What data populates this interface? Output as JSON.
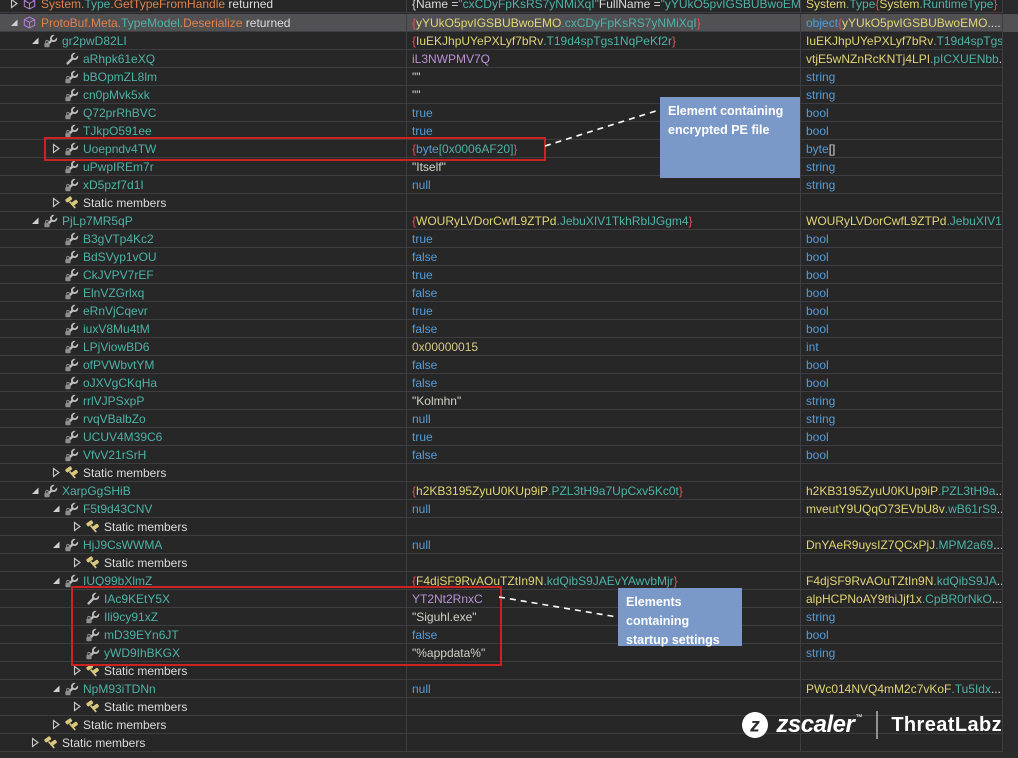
{
  "theme": {
    "bg": "#272728",
    "bg_bottom": "#2b2b2b",
    "bg_strip": "#2a2a2c",
    "row_border": "#3e3e42",
    "selection": "#515154",
    "red_box": "#cc2222",
    "annotation_bg": "#7b99c8",
    "annotation_text": "#ffffff",
    "dashed_line": "#ffffff",
    "tok_white": "#dcdcdc",
    "tok_teal": "#4db3a6",
    "tok_blue": "#569cd6",
    "tok_yellow": "#e2d574",
    "tok_purple": "#bb92d8",
    "tok_red": "#e05252",
    "tok_orange": "#e0824a",
    "tok_khaki": "#d7c987",
    "tok_string": "#d2d2c8"
  },
  "annotations": [
    {
      "id": "encrypted-pe",
      "line1": "Element containing",
      "line2": "encrypted PE file"
    },
    {
      "id": "startup-settings",
      "line1": "Elements containing",
      "line2": "startup settings"
    }
  ],
  "logo": {
    "brand": "zscaler",
    "trademark": "™",
    "product": "ThreatLabz"
  },
  "rows": [
    {
      "lvl": 0,
      "exp": "c",
      "icon": "cube",
      "clip": true,
      "n": [
        [
          "System.",
          "o"
        ],
        [
          "Type",
          "t"
        ],
        [
          ".GetTypeFromHandle",
          "o"
        ],
        [
          " returned",
          "w"
        ]
      ],
      "v": [
        [
          "{Name = ",
          "w"
        ],
        [
          "\"cxCDyFpKsRS7yNMiXqI\"",
          "t"
        ],
        [
          " FullName = ",
          "w"
        ],
        [
          "\"yYUkO5pvIGSBUBwoEM",
          "t"
        ]
      ],
      "t": [
        [
          "System",
          "y"
        ],
        [
          ".Type",
          "t"
        ],
        [
          " {",
          "r"
        ],
        [
          "System",
          "y"
        ],
        [
          ".RuntimeType",
          "t"
        ],
        [
          "}",
          "r"
        ]
      ]
    },
    {
      "lvl": 0,
      "exp": "e",
      "icon": "cube",
      "sel": true,
      "n": [
        [
          "ProtoBuf.Meta.",
          "o"
        ],
        [
          "TypeModel",
          "t"
        ],
        [
          ".Deserialize",
          "o"
        ],
        [
          " returned",
          "w"
        ]
      ],
      "v": [
        [
          "{",
          "r"
        ],
        [
          "yYUkO5pvIGSBUBwoEMO",
          "y"
        ],
        [
          ".cxCDyFpKsRS7yNMiXqI",
          "t"
        ],
        [
          "}",
          "r"
        ]
      ],
      "t": [
        [
          "object ",
          "b"
        ],
        [
          "{",
          "r"
        ],
        [
          "yYUkO5pvIGSBUBwoEMO",
          "y"
        ],
        [
          "....",
          "w"
        ]
      ]
    },
    {
      "lvl": 1,
      "exp": "e",
      "icon": "propsub",
      "n": [
        [
          "gr2pwD82LI",
          "t"
        ]
      ],
      "v": [
        [
          "{",
          "r"
        ],
        [
          "IuEKJhpUYePXLyf7bRv",
          "y"
        ],
        [
          ".T19d4spTgs1NqPeKf2r",
          "t"
        ],
        [
          "}",
          "r"
        ]
      ],
      "t": [
        [
          "IuEKJhpUYePXLyf7bRv",
          "y"
        ],
        [
          ".T19d4spTgs",
          "t"
        ],
        [
          "...",
          "w"
        ]
      ]
    },
    {
      "lvl": 2,
      "exp": null,
      "icon": "prop",
      "n": [
        [
          "aRhpk61eXQ",
          "t"
        ]
      ],
      "v": [
        [
          "iL3NWPMV7Q",
          "p"
        ]
      ],
      "t": [
        [
          "vtjE5wNZnRcKNTj4LPI",
          "y"
        ],
        [
          ".pICXUENbb",
          "t"
        ],
        [
          "...",
          "w"
        ]
      ]
    },
    {
      "lvl": 2,
      "exp": null,
      "icon": "propsub",
      "n": [
        [
          "bBOpmZL8lm",
          "t"
        ]
      ],
      "v": [
        [
          "\"\"",
          "s"
        ]
      ],
      "t": [
        [
          "string",
          "b"
        ]
      ]
    },
    {
      "lvl": 2,
      "exp": null,
      "icon": "propsub",
      "n": [
        [
          "cn0pMvk5xk",
          "t"
        ]
      ],
      "v": [
        [
          "\"\"",
          "s"
        ]
      ],
      "t": [
        [
          "string",
          "b"
        ]
      ]
    },
    {
      "lvl": 2,
      "exp": null,
      "icon": "propsub",
      "n": [
        [
          "Q72prRhBVC",
          "t"
        ]
      ],
      "v": [
        [
          "true",
          "b"
        ]
      ],
      "t": [
        [
          "bool",
          "b"
        ]
      ]
    },
    {
      "lvl": 2,
      "exp": null,
      "icon": "propsub",
      "n": [
        [
          "TJkpO591ee",
          "t"
        ]
      ],
      "v": [
        [
          "true",
          "b"
        ]
      ],
      "t": [
        [
          "bool",
          "b"
        ]
      ]
    },
    {
      "lvl": 2,
      "exp": "c",
      "icon": "propsub",
      "n": [
        [
          "Uoepndv4TW",
          "t"
        ]
      ],
      "v": [
        [
          "{",
          "r"
        ],
        [
          "byte",
          "b"
        ],
        [
          "[0x0006AF20]",
          "t"
        ],
        [
          "}",
          "r"
        ]
      ],
      "t": [
        [
          "byte",
          "b"
        ],
        [
          "[]",
          "w"
        ]
      ]
    },
    {
      "lvl": 2,
      "exp": null,
      "icon": "propsub",
      "n": [
        [
          "uPwpIREm7r",
          "t"
        ]
      ],
      "v": [
        [
          "\"Itself\"",
          "s"
        ]
      ],
      "t": [
        [
          "string",
          "b"
        ]
      ]
    },
    {
      "lvl": 2,
      "exp": null,
      "icon": "propsub",
      "n": [
        [
          "xD5pzf7d1I",
          "t"
        ]
      ],
      "v": [
        [
          "null",
          "b"
        ]
      ],
      "t": [
        [
          "string",
          "b"
        ]
      ]
    },
    {
      "lvl": 2,
      "exp": "c",
      "icon": "static",
      "n": [
        [
          "Static members",
          "w"
        ]
      ],
      "v": [],
      "t": []
    },
    {
      "lvl": 1,
      "exp": "e",
      "icon": "propsub",
      "n": [
        [
          "PjLp7MR5qP",
          "t"
        ]
      ],
      "v": [
        [
          "{",
          "r"
        ],
        [
          "WOURyLVDorCwfL9ZTPd",
          "y"
        ],
        [
          ".JebuXIV1TkhRblJGgm4",
          "t"
        ],
        [
          "}",
          "r"
        ]
      ],
      "t": [
        [
          "WOURyLVDorCwfL9ZTPd",
          "y"
        ],
        [
          ".JebuXIV1",
          "t"
        ],
        [
          "...",
          "w"
        ]
      ]
    },
    {
      "lvl": 2,
      "exp": null,
      "icon": "propsub",
      "n": [
        [
          "B3gVTp4Kc2",
          "t"
        ]
      ],
      "v": [
        [
          "true",
          "b"
        ]
      ],
      "t": [
        [
          "bool",
          "b"
        ]
      ]
    },
    {
      "lvl": 2,
      "exp": null,
      "icon": "propsub",
      "n": [
        [
          "BdSVyp1vOU",
          "t"
        ]
      ],
      "v": [
        [
          "false",
          "b"
        ]
      ],
      "t": [
        [
          "bool",
          "b"
        ]
      ]
    },
    {
      "lvl": 2,
      "exp": null,
      "icon": "propsub",
      "n": [
        [
          "CkJVPV7rEF",
          "t"
        ]
      ],
      "v": [
        [
          "true",
          "b"
        ]
      ],
      "t": [
        [
          "bool",
          "b"
        ]
      ]
    },
    {
      "lvl": 2,
      "exp": null,
      "icon": "propsub",
      "n": [
        [
          "ElnVZGrlxq",
          "t"
        ]
      ],
      "v": [
        [
          "false",
          "b"
        ]
      ],
      "t": [
        [
          "bool",
          "b"
        ]
      ]
    },
    {
      "lvl": 2,
      "exp": null,
      "icon": "propsub",
      "n": [
        [
          "eRnVjCqevr",
          "t"
        ]
      ],
      "v": [
        [
          "true",
          "b"
        ]
      ],
      "t": [
        [
          "bool",
          "b"
        ]
      ]
    },
    {
      "lvl": 2,
      "exp": null,
      "icon": "propsub",
      "n": [
        [
          "iuxV8Mu4tM",
          "t"
        ]
      ],
      "v": [
        [
          "false",
          "b"
        ]
      ],
      "t": [
        [
          "bool",
          "b"
        ]
      ]
    },
    {
      "lvl": 2,
      "exp": null,
      "icon": "propsub",
      "n": [
        [
          "LPjViowBD6",
          "t"
        ]
      ],
      "v": [
        [
          "0x00000015",
          "k"
        ]
      ],
      "t": [
        [
          "int",
          "b"
        ]
      ]
    },
    {
      "lvl": 2,
      "exp": null,
      "icon": "propsub",
      "n": [
        [
          "ofPVWbvtYM",
          "t"
        ]
      ],
      "v": [
        [
          "false",
          "b"
        ]
      ],
      "t": [
        [
          "bool",
          "b"
        ]
      ]
    },
    {
      "lvl": 2,
      "exp": null,
      "icon": "propsub",
      "n": [
        [
          "oJXVgCKqHa",
          "t"
        ]
      ],
      "v": [
        [
          "false",
          "b"
        ]
      ],
      "t": [
        [
          "bool",
          "b"
        ]
      ]
    },
    {
      "lvl": 2,
      "exp": null,
      "icon": "propsub",
      "n": [
        [
          "rrlVJPSxpP",
          "t"
        ]
      ],
      "v": [
        [
          "\"Kolmhn\"",
          "s"
        ]
      ],
      "t": [
        [
          "string",
          "b"
        ]
      ]
    },
    {
      "lvl": 2,
      "exp": null,
      "icon": "propsub",
      "n": [
        [
          "rvqVBalbZo",
          "t"
        ]
      ],
      "v": [
        [
          "null",
          "b"
        ]
      ],
      "t": [
        [
          "string",
          "b"
        ]
      ]
    },
    {
      "lvl": 2,
      "exp": null,
      "icon": "propsub",
      "n": [
        [
          "UCUV4M39C6",
          "t"
        ]
      ],
      "v": [
        [
          "true",
          "b"
        ]
      ],
      "t": [
        [
          "bool",
          "b"
        ]
      ]
    },
    {
      "lvl": 2,
      "exp": null,
      "icon": "propsub",
      "n": [
        [
          "VfvV21rSrH",
          "t"
        ]
      ],
      "v": [
        [
          "false",
          "b"
        ]
      ],
      "t": [
        [
          "bool",
          "b"
        ]
      ]
    },
    {
      "lvl": 2,
      "exp": "c",
      "icon": "static",
      "n": [
        [
          "Static members",
          "w"
        ]
      ],
      "v": [],
      "t": []
    },
    {
      "lvl": 1,
      "exp": "e",
      "icon": "propsub",
      "n": [
        [
          "XarpGgSHiB",
          "t"
        ]
      ],
      "v": [
        [
          "{",
          "r"
        ],
        [
          "h2KB3195ZyuU0KUp9iP",
          "y"
        ],
        [
          ".PZL3tH9a7UpCxv5Kc0t",
          "t"
        ],
        [
          "}",
          "r"
        ]
      ],
      "t": [
        [
          "h2KB3195ZyuU0KUp9iP",
          "y"
        ],
        [
          ".PZL3tH9a",
          "t"
        ],
        [
          "...",
          "w"
        ]
      ]
    },
    {
      "lvl": 2,
      "exp": "e",
      "icon": "propsub",
      "n": [
        [
          "F5t9d43CNV",
          "t"
        ]
      ],
      "v": [
        [
          "null",
          "b"
        ]
      ],
      "t": [
        [
          "mveutY9UQqO73EVbU8v",
          "y"
        ],
        [
          ".wB61rS9",
          "t"
        ],
        [
          "...",
          "w"
        ]
      ]
    },
    {
      "lvl": 3,
      "exp": "c",
      "icon": "static",
      "n": [
        [
          "Static members",
          "w"
        ]
      ],
      "v": [],
      "t": []
    },
    {
      "lvl": 2,
      "exp": "e",
      "icon": "propsub",
      "n": [
        [
          "HjJ9CsWWMA",
          "t"
        ]
      ],
      "v": [
        [
          "null",
          "b"
        ]
      ],
      "t": [
        [
          "DnYAeR9uysIZ7QCxPjJ",
          "y"
        ],
        [
          ".MPM2a69",
          "t"
        ],
        [
          "...",
          "w"
        ]
      ]
    },
    {
      "lvl": 3,
      "exp": "c",
      "icon": "static",
      "n": [
        [
          "Static members",
          "w"
        ]
      ],
      "v": [],
      "t": []
    },
    {
      "lvl": 2,
      "exp": "e",
      "icon": "propsub",
      "n": [
        [
          "IUQ99bXlmZ",
          "t"
        ]
      ],
      "v": [
        [
          "{",
          "r"
        ],
        [
          "F4djSF9RvAOuTZtIn9N",
          "y"
        ],
        [
          ".kdQibS9JAEvYAwvbMjr",
          "t"
        ],
        [
          "}",
          "r"
        ]
      ],
      "t": [
        [
          "F4djSF9RvAOuTZtIn9N",
          "y"
        ],
        [
          ".kdQibS9JA",
          "t"
        ],
        [
          "...",
          "w"
        ]
      ]
    },
    {
      "lvl": 3,
      "exp": null,
      "icon": "prop",
      "n": [
        [
          "IAc9KEtY5X",
          "t"
        ]
      ],
      "v": [
        [
          "YT2Nt2RnxC",
          "p"
        ]
      ],
      "t": [
        [
          "alpHCPNoAY9thiJjf1x",
          "y"
        ],
        [
          ".CpBR0rNkO",
          "t"
        ],
        [
          "...",
          "w"
        ]
      ]
    },
    {
      "lvl": 3,
      "exp": null,
      "icon": "propsub",
      "n": [
        [
          "Ili9cy91xZ",
          "t"
        ]
      ],
      "v": [
        [
          "\"Siguhl.exe\"",
          "s"
        ]
      ],
      "t": [
        [
          "string",
          "b"
        ]
      ]
    },
    {
      "lvl": 3,
      "exp": null,
      "icon": "propsub",
      "n": [
        [
          "mD39EYn6JT",
          "t"
        ]
      ],
      "v": [
        [
          "false",
          "b"
        ]
      ],
      "t": [
        [
          "bool",
          "b"
        ]
      ]
    },
    {
      "lvl": 3,
      "exp": null,
      "icon": "propsub",
      "n": [
        [
          "yWD9IhBKGX",
          "t"
        ]
      ],
      "v": [
        [
          "\"%appdata%\"",
          "s"
        ]
      ],
      "t": [
        [
          "string",
          "b"
        ]
      ]
    },
    {
      "lvl": 3,
      "exp": "c",
      "icon": "static",
      "n": [
        [
          "Static members",
          "w"
        ]
      ],
      "v": [],
      "t": []
    },
    {
      "lvl": 2,
      "exp": "e",
      "icon": "propsub",
      "n": [
        [
          "NpM93iTDNn",
          "t"
        ]
      ],
      "v": [
        [
          "null",
          "b"
        ]
      ],
      "t": [
        [
          "PWc014NVQ4mM2c7vKoF",
          "y"
        ],
        [
          ".Tu5Idx",
          "t"
        ],
        [
          "...",
          "w"
        ]
      ]
    },
    {
      "lvl": 3,
      "exp": "c",
      "icon": "static",
      "n": [
        [
          "Static members",
          "w"
        ]
      ],
      "v": [],
      "t": []
    },
    {
      "lvl": 2,
      "exp": "c",
      "icon": "static",
      "n": [
        [
          "Static members",
          "w"
        ]
      ],
      "v": [],
      "t": []
    },
    {
      "lvl": 1,
      "exp": "c",
      "icon": "static",
      "n": [
        [
          "Static members",
          "w"
        ]
      ],
      "v": [],
      "t": []
    }
  ]
}
